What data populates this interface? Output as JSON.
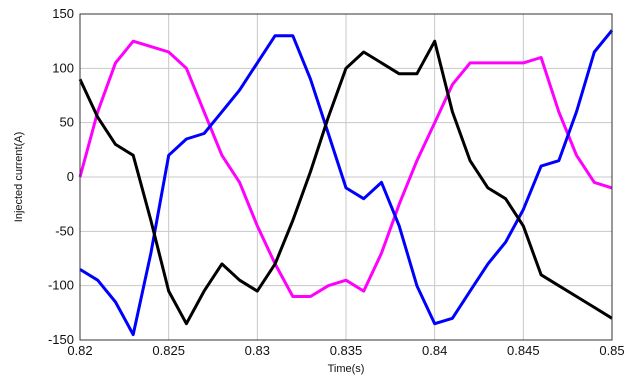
{
  "chart_data": {
    "type": "line",
    "title": "",
    "xlabel": "Time(s)",
    "ylabel": "Injected current(A)",
    "xlim": [
      0.82,
      0.85
    ],
    "ylim": [
      -150,
      150
    ],
    "grid": true,
    "x_ticks": [
      0.82,
      0.825,
      0.83,
      0.835,
      0.84,
      0.845,
      0.85
    ],
    "x_tick_labels": [
      "0.82",
      "0.825",
      "0.83",
      "0.835",
      "0.84",
      "0.845",
      "0.85"
    ],
    "y_ticks": [
      150,
      100,
      50,
      0,
      -50,
      -100,
      -150
    ],
    "y_tick_labels": [
      "150",
      "100",
      "50",
      "0",
      "-50",
      "-100",
      "-150"
    ],
    "x": [
      0.82,
      0.821,
      0.822,
      0.823,
      0.824,
      0.825,
      0.826,
      0.827,
      0.828,
      0.829,
      0.83,
      0.831,
      0.832,
      0.833,
      0.834,
      0.835,
      0.836,
      0.837,
      0.838,
      0.839,
      0.84,
      0.841,
      0.842,
      0.843,
      0.844,
      0.845,
      0.846,
      0.847,
      0.848,
      0.849,
      0.85
    ],
    "series": [
      {
        "color": "#ff00ff",
        "values": [
          0,
          60,
          105,
          125,
          120,
          115,
          100,
          60,
          20,
          -5,
          -45,
          -80,
          -110,
          -110,
          -100,
          -95,
          -105,
          -70,
          -25,
          15,
          50,
          85,
          105,
          105,
          105,
          105,
          110,
          60,
          20,
          -5,
          -10
        ]
      },
      {
        "color": "#0000ff",
        "values": [
          -85,
          -95,
          -115,
          -145,
          -70,
          20,
          35,
          40,
          60,
          80,
          105,
          130,
          130,
          90,
          40,
          -10,
          -20,
          -5,
          -45,
          -100,
          -135,
          -130,
          -105,
          -80,
          -60,
          -30,
          10,
          15,
          60,
          115,
          135
        ]
      },
      {
        "color": "#000000",
        "values": [
          90,
          55,
          30,
          20,
          -40,
          -105,
          -135,
          -105,
          -80,
          -95,
          -105,
          -80,
          -40,
          5,
          55,
          100,
          115,
          105,
          95,
          95,
          125,
          60,
          15,
          -10,
          -20,
          -45,
          -90,
          -100,
          -110,
          -120,
          -130
        ]
      }
    ]
  }
}
